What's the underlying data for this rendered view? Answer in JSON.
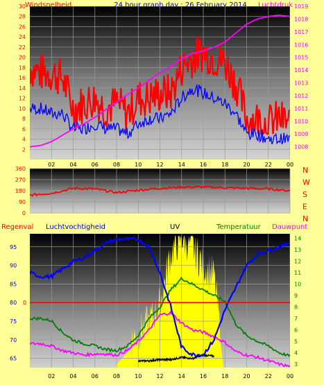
{
  "header": {
    "left": "Windsnelheid",
    "center": "24 hour graph day : 26 February 2014",
    "right": "Luchtdruk"
  },
  "direction_letters": [
    "N",
    "W",
    "S",
    "E",
    "N"
  ],
  "bottom_header": {
    "regen": "Regenval",
    "vocht": "Luchtvochtigheid",
    "uv": "UV",
    "temp": "Temperatuur",
    "dauw": "Dauwpunt"
  },
  "colors": {
    "background": "#ffff99",
    "wind": "#ff0000",
    "gust_envelope": "#ff0000",
    "avg_wind": "#0000ff",
    "pressure": "#ff00ff",
    "direction": "#ff0000",
    "humidity": "#0000ff",
    "temperature": "#008000",
    "dewpoint": "#ff00ff",
    "uv": "#ffff00",
    "rain": "#ff0000",
    "solar": "#000000"
  },
  "chart_data": [
    {
      "type": "line",
      "x_ticks": [
        "02",
        "04",
        "06",
        "08",
        "10",
        "12",
        "14",
        "16",
        "18",
        "20",
        "22",
        "00"
      ],
      "y_left_ticks": [
        "2",
        "4",
        "6",
        "8",
        "10",
        "12",
        "14",
        "16",
        "18",
        "20",
        "22",
        "24",
        "26",
        "28",
        "30"
      ],
      "y_left_range": [
        0,
        30
      ],
      "y_right_ticks": [
        "1008",
        "1009",
        "1010",
        "1011",
        "1012",
        "1013",
        "1014",
        "1015",
        "1016",
        "1017",
        "1018",
        "1019"
      ],
      "y_right_range": [
        1007,
        1019
      ],
      "series": [
        {
          "id": "wind_gust",
          "x": [
            0,
            1,
            2,
            3,
            4,
            5,
            6,
            7,
            8,
            9,
            10,
            11,
            12,
            13,
            14,
            15,
            16,
            17,
            18,
            19,
            20,
            21,
            22,
            23,
            24
          ],
          "values": [
            18,
            17,
            17,
            16,
            10,
            11,
            12,
            10,
            11,
            9,
            12,
            12,
            13,
            13,
            18,
            20,
            21,
            20,
            19,
            15,
            8,
            8,
            7,
            8,
            7
          ]
        },
        {
          "id": "wind_avg",
          "x": [
            0,
            1,
            2,
            3,
            4,
            5,
            6,
            7,
            8,
            9,
            10,
            11,
            12,
            13,
            14,
            15,
            16,
            17,
            18,
            19,
            20,
            21,
            22,
            23,
            24
          ],
          "values": [
            10,
            10,
            9,
            9,
            6,
            6,
            7,
            6,
            6,
            5,
            7,
            8,
            8,
            9,
            12,
            14,
            13,
            12,
            11,
            9,
            5,
            5,
            4,
            4,
            4
          ]
        },
        {
          "id": "pressure",
          "x": [
            0,
            1,
            2,
            3,
            4,
            5,
            6,
            7,
            8,
            9,
            10,
            11,
            12,
            13,
            14,
            15,
            16,
            17,
            18,
            19,
            20,
            21,
            22,
            23,
            24
          ],
          "values": [
            1008.0,
            1008.1,
            1008.4,
            1008.9,
            1009.4,
            1009.8,
            1010.3,
            1010.9,
            1011.5,
            1012.1,
            1012.6,
            1013.2,
            1013.8,
            1014.3,
            1014.9,
            1015.3,
            1015.5,
            1015.8,
            1016.2,
            1016.9,
            1017.6,
            1018.0,
            1018.2,
            1018.3,
            1018.2
          ]
        }
      ]
    },
    {
      "type": "line",
      "x_ticks": [
        "02",
        "04",
        "06",
        "08",
        "10",
        "12",
        "14",
        "16",
        "18",
        "20",
        "22",
        "00"
      ],
      "y_ticks": [
        "360",
        "270",
        "180",
        "90",
        "0"
      ],
      "y_range": [
        0,
        360
      ],
      "series": [
        {
          "id": "wind_direction",
          "x": [
            0,
            2,
            4,
            6,
            8,
            10,
            12,
            14,
            16,
            18,
            20,
            22,
            24
          ],
          "values": [
            145,
            160,
            200,
            195,
            165,
            185,
            200,
            210,
            210,
            205,
            200,
            195,
            180
          ]
        }
      ]
    },
    {
      "type": "line",
      "x_ticks": [
        "02",
        "04",
        "06",
        "08",
        "10",
        "12",
        "14",
        "16",
        "18",
        "20",
        "22",
        "00"
      ],
      "y_left_ticks": [
        "65",
        "70",
        "75",
        "80",
        "85",
        "90",
        "95"
      ],
      "y_left_range": [
        62.5,
        98.5
      ],
      "y_right_ticks": [
        "3",
        "4",
        "5",
        "6",
        "7",
        "8",
        "9",
        "10",
        "11",
        "12",
        "13",
        "14"
      ],
      "y_right_range": [
        2.7,
        14.4
      ],
      "rain_value": "0",
      "series": [
        {
          "id": "humidity",
          "x": [
            0,
            1,
            2,
            3,
            4,
            5,
            6,
            7,
            8,
            9,
            10,
            11,
            12,
            13,
            14,
            15,
            16,
            17,
            18,
            19,
            20,
            21,
            22,
            23,
            24
          ],
          "values": [
            88,
            87,
            87,
            89,
            91,
            92,
            94,
            96,
            97,
            97,
            97,
            95,
            88,
            79,
            68,
            66,
            66,
            70,
            78,
            84,
            90,
            93,
            94,
            95,
            96
          ]
        },
        {
          "id": "temperature",
          "x": [
            0,
            1,
            2,
            3,
            4,
            5,
            6,
            7,
            8,
            9,
            10,
            11,
            12,
            13,
            14,
            15,
            16,
            17,
            18,
            19,
            20,
            21,
            22,
            23,
            24
          ],
          "values": [
            7.0,
            7.0,
            6.8,
            5.8,
            5.1,
            4.8,
            4.6,
            4.3,
            4.2,
            4.6,
            5.5,
            7.0,
            8.0,
            9.5,
            10.5,
            10.0,
            9.5,
            9.0,
            8.5,
            6.5,
            5.5,
            5.0,
            4.6,
            4.0,
            3.7
          ]
        },
        {
          "id": "dewpoint",
          "x": [
            0,
            1,
            2,
            3,
            4,
            5,
            6,
            7,
            8,
            9,
            10,
            11,
            12,
            13,
            14,
            15,
            16,
            17,
            18,
            19,
            20,
            21,
            22,
            23,
            24
          ],
          "values": [
            4.8,
            4.8,
            4.6,
            4.2,
            4.0,
            3.8,
            3.9,
            3.9,
            3.8,
            4.2,
            5.0,
            6.0,
            7.3,
            7.5,
            6.6,
            6.0,
            5.8,
            5.4,
            4.9,
            4.1,
            3.8,
            3.6,
            3.3,
            3.0,
            2.8
          ]
        },
        {
          "id": "uv",
          "x": [
            7.5,
            8,
            9,
            10,
            11,
            12,
            13,
            14,
            15,
            16,
            17,
            18
          ],
          "values": [
            1.5,
            3.0,
            4.0,
            5.0,
            6.0,
            7.5,
            12.0,
            13.5,
            12.5,
            11.0,
            10.0,
            1.5
          ]
        },
        {
          "id": "solar",
          "x": [
            10,
            11,
            12,
            13,
            14,
            15,
            16,
            17
          ],
          "values": [
            3.3,
            3.3,
            3.4,
            3.4,
            3.6,
            3.5,
            3.8,
            3.7
          ]
        }
      ]
    }
  ]
}
